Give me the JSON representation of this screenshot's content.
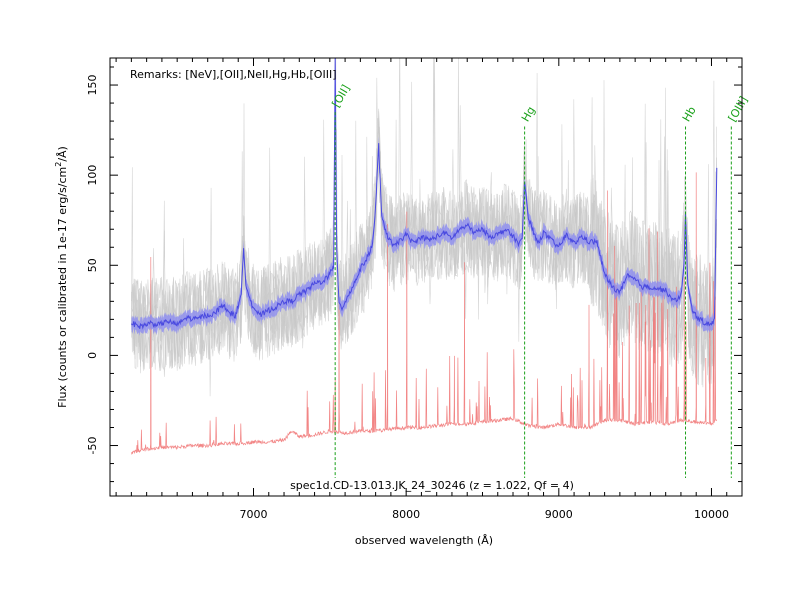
{
  "chart_data": {
    "type": "line",
    "title": "",
    "xlabel": "observed wavelength (Å)",
    "ylabel_parts": {
      "main": "Flux (counts or calibrated in 1e-17 erg/s/cm",
      "sup": "2",
      "tail": "/Å)"
    },
    "remarks": "Remarks: [NeV],[OII],NeII,Hg,Hb,[OIII]",
    "spectrum_id": "spec1d.CD-13.013.JK_24_30246 (z = 1.022, Qf = 4)",
    "xlim": [
      6060,
      10200
    ],
    "ylim": [
      -78,
      165
    ],
    "x_ticks": [
      7000,
      8000,
      9000,
      10000
    ],
    "x_tick_labels": [
      "7000",
      "8000",
      "9000",
      "10000"
    ],
    "y_ticks": [
      -50,
      0,
      50,
      100,
      150
    ],
    "y_tick_labels": [
      "-50",
      "0",
      "50",
      "100",
      "150"
    ],
    "grid": false,
    "colors": {
      "mean": "#4a4ae0",
      "band": "#8c8cf0",
      "individual": "#c8c8c8",
      "noise": "#f07070",
      "lines": "#1aa11a"
    },
    "emission_lines": [
      {
        "label": "[OII]",
        "x": 7535,
        "y_top": 135
      },
      {
        "label": "Hg",
        "x": 8776,
        "y_top": 127
      },
      {
        "label": "Hb",
        "x": 9830,
        "y_top": 127
      },
      {
        "label": "[OIII]",
        "x": 10130,
        "y_top": 127
      }
    ],
    "series": [
      {
        "role": "mean",
        "x": [
          6200,
          6260,
          6320,
          6380,
          6440,
          6500,
          6560,
          6620,
          6680,
          6740,
          6800,
          6840,
          6880,
          6920,
          6935,
          6950,
          6990,
          7040,
          7100,
          7150,
          7200,
          7250,
          7300,
          7350,
          7400,
          7450,
          7490,
          7510,
          7525,
          7535,
          7545,
          7560,
          7580,
          7600,
          7650,
          7700,
          7750,
          7780,
          7800,
          7820,
          7840,
          7880,
          7920,
          7960,
          8000,
          8050,
          8100,
          8150,
          8200,
          8250,
          8300,
          8350,
          8400,
          8450,
          8500,
          8550,
          8600,
          8650,
          8700,
          8740,
          8760,
          8776,
          8800,
          8830,
          8860,
          8900,
          8950,
          9000,
          9050,
          9100,
          9150,
          9200,
          9250,
          9300,
          9350,
          9400,
          9450,
          9500,
          9550,
          9600,
          9650,
          9700,
          9750,
          9800,
          9820,
          9830,
          9845,
          9880,
          9920,
          9960,
          10000,
          10020,
          10035
        ],
        "y": [
          18,
          16,
          18,
          17,
          19,
          17,
          21,
          20,
          22,
          23,
          28,
          24,
          22,
          33,
          60,
          40,
          28,
          22,
          25,
          27,
          30,
          30,
          34,
          36,
          40,
          41,
          44,
          47,
          48,
          165,
          60,
          30,
          26,
          30,
          38,
          48,
          55,
          62,
          82,
          117,
          76,
          66,
          60,
          64,
          67,
          62,
          66,
          64,
          66,
          68,
          65,
          70,
          72,
          68,
          70,
          66,
          67,
          70,
          66,
          62,
          64,
          97,
          76,
          70,
          62,
          68,
          64,
          60,
          67,
          62,
          66,
          63,
          63,
          45,
          38,
          35,
          44,
          42,
          38,
          38,
          37,
          36,
          30,
          33,
          50,
          78,
          38,
          24,
          20,
          18,
          17,
          20,
          103
        ]
      },
      {
        "role": "noise",
        "x": [
          6200,
          6300,
          6400,
          6500,
          6600,
          6700,
          6800,
          6900,
          7000,
          7100,
          7200,
          7250,
          7300,
          7400,
          7500,
          7600,
          7700,
          7800,
          7900,
          8000,
          8100,
          8200,
          8300,
          8400,
          8500,
          8600,
          8700,
          8800,
          8900,
          9000,
          9100,
          9200,
          9300,
          9400,
          9500,
          9600,
          9700,
          9800,
          9900,
          10000,
          10030
        ],
        "y": [
          -54,
          -52,
          -51,
          -51,
          -50,
          -50,
          -49,
          -49,
          -48,
          -48,
          -47,
          -42,
          -45,
          -44,
          -42,
          -43,
          -42,
          -42,
          -41,
          -40,
          -40,
          -39,
          -38,
          -38,
          -37,
          -36,
          -35,
          -39,
          -40,
          -38,
          -40,
          -40,
          -36,
          -36,
          -38,
          -37,
          -38,
          -36,
          -37,
          -38,
          -36
        ]
      }
    ]
  }
}
